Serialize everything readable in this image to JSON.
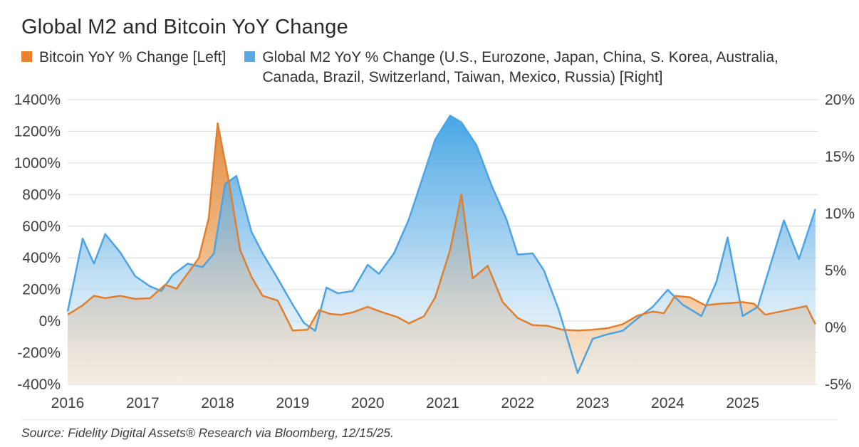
{
  "title": "Global M2 and Bitcoin YoY Change",
  "legend": [
    {
      "label": "Bitcoin YoY % Change [Left]",
      "color": "#E8832C"
    },
    {
      "label": "Global M2 YoY % Change (U.S., Eurozone, Japan, China, S. Korea, Australia, Canada, Brazil, Switzerland, Taiwan, Mexico, Russia) [Right]",
      "color": "#5BA7E0"
    }
  ],
  "source": "Source: Fidelity Digital Assets® Research via Bloomberg, 12/15/25.",
  "colors": {
    "bitcoin_line": "#E07F2E",
    "m2_line": "#4DA3E3",
    "grid": "#dcdcdc"
  },
  "chart_data": {
    "type": "area",
    "title": "Global M2 and Bitcoin YoY Change",
    "x_range": [
      2016,
      2026
    ],
    "x_ticks": [
      2016,
      2017,
      2018,
      2019,
      2020,
      2021,
      2022,
      2023,
      2024,
      2025
    ],
    "grid": true,
    "legend_position": "top",
    "left_axis": {
      "min": -400,
      "max": 1400,
      "ticks": [
        1400,
        1200,
        1000,
        800,
        600,
        400,
        200,
        0,
        -200,
        -400
      ],
      "tick_labels": [
        "1400%",
        "1200%",
        "1000%",
        "800%",
        "600%",
        "400%",
        "200%",
        "0%",
        "-200%",
        "-400%"
      ]
    },
    "right_axis": {
      "min": -5,
      "max": 20,
      "ticks": [
        20,
        15,
        10,
        5,
        0,
        -5
      ],
      "tick_labels": [
        "20%",
        "15%",
        "10%",
        "5%",
        "0%",
        "-5%"
      ]
    },
    "series": [
      {
        "name": "Bitcoin YoY % Change",
        "axis": "left",
        "x": [
          2016.0,
          2016.2,
          2016.35,
          2016.5,
          2016.7,
          2016.9,
          2017.1,
          2017.3,
          2017.45,
          2017.6,
          2017.75,
          2017.88,
          2018.0,
          2018.15,
          2018.3,
          2018.45,
          2018.6,
          2018.8,
          2019.0,
          2019.2,
          2019.35,
          2019.5,
          2019.65,
          2019.8,
          2020.0,
          2020.2,
          2020.4,
          2020.55,
          2020.75,
          2020.9,
          2021.1,
          2021.25,
          2021.4,
          2021.6,
          2021.8,
          2022.0,
          2022.2,
          2022.4,
          2022.6,
          2022.8,
          2023.0,
          2023.2,
          2023.4,
          2023.6,
          2023.8,
          2023.95,
          2024.1,
          2024.3,
          2024.5,
          2024.7,
          2024.85,
          2025.0,
          2025.15,
          2025.3,
          2025.5,
          2025.7,
          2025.85,
          2025.97
        ],
        "values": [
          40,
          100,
          160,
          145,
          160,
          140,
          145,
          230,
          205,
          300,
          400,
          650,
          1250,
          880,
          450,
          280,
          160,
          130,
          -60,
          -55,
          70,
          45,
          40,
          55,
          90,
          55,
          25,
          -15,
          30,
          150,
          450,
          800,
          270,
          350,
          120,
          20,
          -25,
          -30,
          -55,
          -60,
          -55,
          -45,
          -20,
          35,
          60,
          50,
          160,
          150,
          100,
          110,
          115,
          120,
          110,
          40,
          60,
          80,
          95,
          -20
        ]
      },
      {
        "name": "Global M2 YoY % Change",
        "axis": "right",
        "x": [
          2016.0,
          2016.2,
          2016.35,
          2016.5,
          2016.7,
          2016.9,
          2017.1,
          2017.25,
          2017.4,
          2017.6,
          2017.8,
          2017.95,
          2018.1,
          2018.25,
          2018.45,
          2018.6,
          2018.8,
          2019.0,
          2019.15,
          2019.3,
          2019.45,
          2019.6,
          2019.8,
          2020.0,
          2020.15,
          2020.35,
          2020.55,
          2020.75,
          2020.9,
          2021.1,
          2021.25,
          2021.45,
          2021.65,
          2021.85,
          2022.0,
          2022.2,
          2022.35,
          2022.55,
          2022.8,
          2023.0,
          2023.2,
          2023.4,
          2023.6,
          2023.8,
          2024.0,
          2024.2,
          2024.45,
          2024.65,
          2024.8,
          2025.0,
          2025.2,
          2025.55,
          2025.75,
          2025.97
        ],
        "values": [
          1.4,
          7.8,
          5.6,
          8.2,
          6.6,
          4.5,
          3.6,
          3.2,
          4.6,
          5.6,
          5.3,
          6.5,
          12.6,
          13.3,
          8.4,
          6.5,
          4.3,
          2.0,
          0.4,
          -0.3,
          3.5,
          3.0,
          3.2,
          5.5,
          4.7,
          6.5,
          9.5,
          13.5,
          16.5,
          18.6,
          18.0,
          16.0,
          12.5,
          9.5,
          6.4,
          6.5,
          5.0,
          1.5,
          -4.0,
          -1.0,
          -0.6,
          -0.3,
          0.8,
          1.8,
          3.3,
          2.0,
          1.0,
          4.0,
          7.9,
          1.0,
          1.8,
          9.4,
          6.0,
          10.4
        ]
      }
    ]
  }
}
